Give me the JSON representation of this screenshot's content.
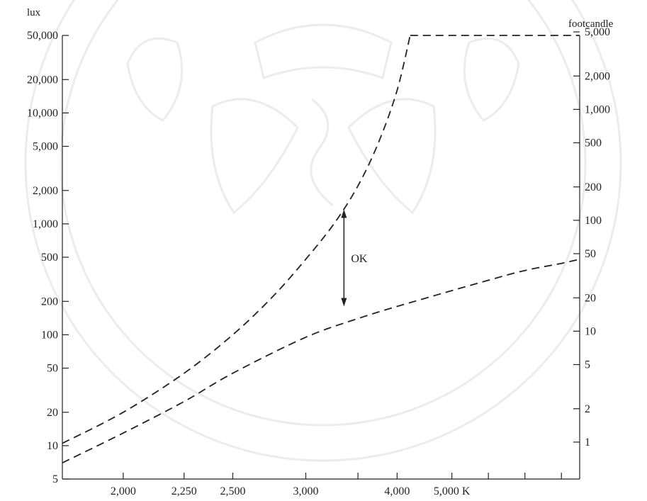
{
  "chart_data": {
    "type": "line",
    "title": "",
    "left_axis_label": "lux",
    "right_axis_label": "footcandle",
    "x_unit_suffix": "K",
    "yscale": "log",
    "xscale": "reciprocal",
    "ylim": [
      5,
      50000
    ],
    "xlim": [
      1800,
      12000
    ],
    "left_ticks": [
      {
        "value": 5,
        "label": "5"
      },
      {
        "value": 10,
        "label": "10"
      },
      {
        "value": 20,
        "label": "20"
      },
      {
        "value": 50,
        "label": "50"
      },
      {
        "value": 100,
        "label": "100"
      },
      {
        "value": 200,
        "label": "200"
      },
      {
        "value": 500,
        "label": "500"
      },
      {
        "value": 1000,
        "label": "1,000"
      },
      {
        "value": 2000,
        "label": "2,000"
      },
      {
        "value": 5000,
        "label": "5,000"
      },
      {
        "value": 10000,
        "label": "10,000"
      },
      {
        "value": 20000,
        "label": "20,000"
      },
      {
        "value": 50000,
        "label": "50,000"
      }
    ],
    "right_ticks": [
      {
        "value": 1,
        "label": "1"
      },
      {
        "value": 2,
        "label": "2"
      },
      {
        "value": 5,
        "label": "5"
      },
      {
        "value": 10,
        "label": "10"
      },
      {
        "value": 20,
        "label": "20"
      },
      {
        "value": 50,
        "label": "50"
      },
      {
        "value": 100,
        "label": "100"
      },
      {
        "value": 200,
        "label": "200"
      },
      {
        "value": 500,
        "label": "500"
      },
      {
        "value": 1000,
        "label": "1,000"
      },
      {
        "value": 2000,
        "label": "2,000"
      },
      {
        "value": 5000,
        "label": "5,000"
      }
    ],
    "x_ticks": [
      {
        "value": 2000,
        "label": "2,000"
      },
      {
        "value": 2250,
        "label": "2,250"
      },
      {
        "value": 2500,
        "label": "2,500"
      },
      {
        "value": 3000,
        "label": "3,000"
      },
      {
        "value": 3500,
        "label": ""
      },
      {
        "value": 4000,
        "label": "4,000"
      },
      {
        "value": 5000,
        "label": "5,000 K"
      },
      {
        "value": 6000,
        "label": ""
      },
      {
        "value": 7500,
        "label": ""
      },
      {
        "value": 10000,
        "label": ""
      }
    ],
    "series": [
      {
        "role": "upper",
        "points": [
          {
            "x": 1800,
            "y": 10.5
          },
          {
            "x": 2000,
            "y": 20
          },
          {
            "x": 2250,
            "y": 45
          },
          {
            "x": 2500,
            "y": 100
          },
          {
            "x": 2750,
            "y": 220
          },
          {
            "x": 3000,
            "y": 480
          },
          {
            "x": 3250,
            "y": 1000
          },
          {
            "x": 3500,
            "y": 2200
          },
          {
            "x": 3750,
            "y": 5500
          },
          {
            "x": 4000,
            "y": 16000
          },
          {
            "x": 4200,
            "y": 50000
          }
        ]
      },
      {
        "role": "lower",
        "points": [
          {
            "x": 1800,
            "y": 7
          },
          {
            "x": 2000,
            "y": 13
          },
          {
            "x": 2250,
            "y": 25
          },
          {
            "x": 2500,
            "y": 45
          },
          {
            "x": 3000,
            "y": 95
          },
          {
            "x": 3500,
            "y": 140
          },
          {
            "x": 4000,
            "y": 180
          },
          {
            "x": 5000,
            "y": 250
          },
          {
            "x": 6000,
            "y": 310
          },
          {
            "x": 7500,
            "y": 380
          },
          {
            "x": 10000,
            "y": 440
          },
          {
            "x": 12000,
            "y": 480
          }
        ]
      },
      {
        "role": "top-boundary",
        "points": [
          {
            "x": 4200,
            "y": 50000
          },
          {
            "x": 12000,
            "y": 50000
          }
        ]
      }
    ],
    "annotations": [
      {
        "text": "OK",
        "x": 3350,
        "y_low": 180,
        "y_high": 1350
      }
    ]
  },
  "watermark": {
    "color": "#c9c9c9",
    "opacity": 0.35
  }
}
